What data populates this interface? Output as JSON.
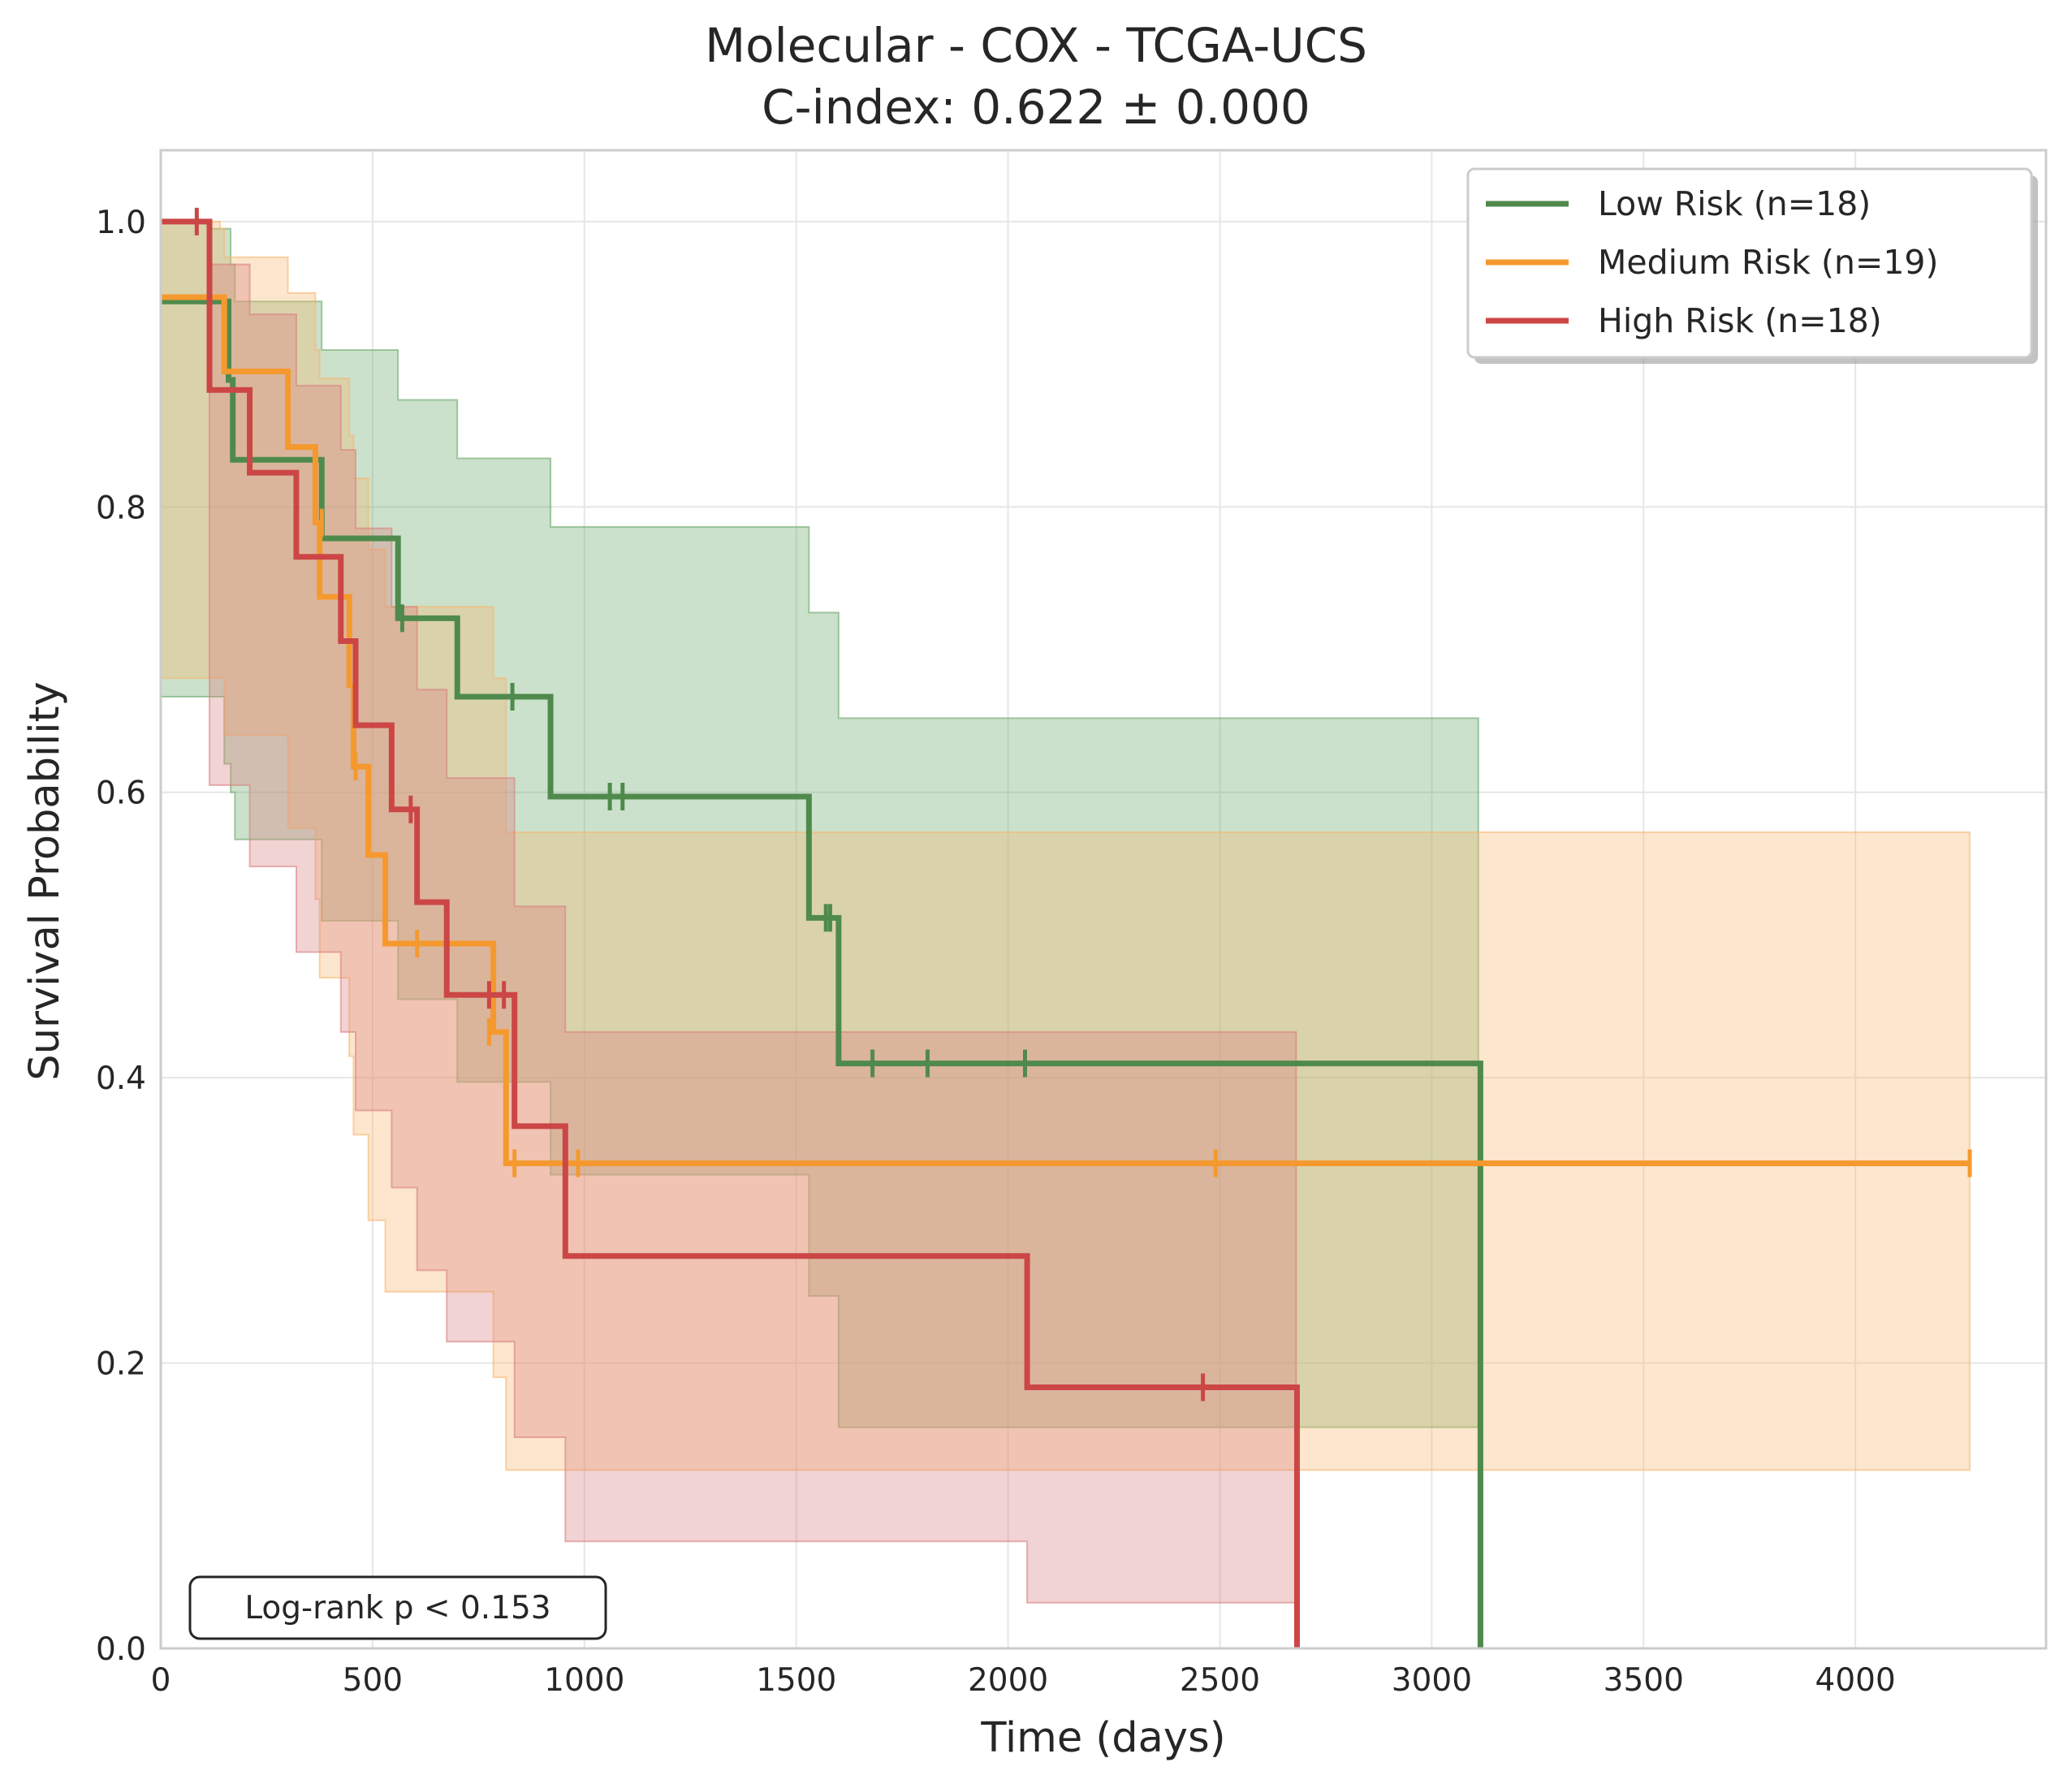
{
  "chart_data": {
    "type": "line",
    "title": [
      "Molecular - COX - TCGA-UCS",
      "C-index: 0.622 ± 0.000"
    ],
    "xlabel": "Time (days)",
    "ylabel": "Survival Probability",
    "xlim": [
      0,
      4450
    ],
    "ylim": [
      0,
      1.05
    ],
    "xticks": [
      0,
      500,
      1000,
      1500,
      2000,
      2500,
      3000,
      3500,
      4000
    ],
    "yticks": [
      0.0,
      0.2,
      0.4,
      0.6,
      0.8,
      1.0
    ],
    "xtick_labels": [
      "0",
      "500",
      "1000",
      "1500",
      "2000",
      "2500",
      "3000",
      "3500",
      "4000"
    ],
    "ytick_labels": [
      "0.0",
      "0.2",
      "0.4",
      "0.6",
      "0.8",
      "1.0"
    ],
    "grid": true,
    "legend_position": "top-right",
    "annotation": "Log-rank p < 0.153",
    "series": [
      {
        "name": "Low Risk (n=18)",
        "color": "#4f8a4c",
        "band_color": "#6aa86a",
        "steps": [
          [
            0,
            0.944
          ],
          [
            140,
            0.944
          ],
          [
            160,
            0.889
          ],
          [
            170,
            0.833
          ],
          [
            370,
            0.833
          ],
          [
            380,
            0.778
          ],
          [
            550,
            0.778
          ],
          [
            560,
            0.722
          ],
          [
            690,
            0.722
          ],
          [
            700,
            0.667
          ],
          [
            910,
            0.667
          ],
          [
            920,
            0.597
          ],
          [
            1520,
            0.597
          ],
          [
            1530,
            0.512
          ],
          [
            1590,
            0.512
          ],
          [
            1600,
            0.41
          ],
          [
            3110,
            0.41
          ],
          [
            3115,
            0.0
          ]
        ],
        "band": [
          [
            0,
            0.667,
            1.0
          ],
          [
            110,
            0.667,
            0.995
          ],
          [
            150,
            0.62,
            0.995
          ],
          [
            165,
            0.6,
            0.97
          ],
          [
            175,
            0.567,
            0.944
          ],
          [
            370,
            0.567,
            0.944
          ],
          [
            380,
            0.51,
            0.91
          ],
          [
            550,
            0.51,
            0.91
          ],
          [
            560,
            0.455,
            0.875
          ],
          [
            690,
            0.455,
            0.875
          ],
          [
            700,
            0.397,
            0.834
          ],
          [
            910,
            0.397,
            0.834
          ],
          [
            920,
            0.332,
            0.786
          ],
          [
            1520,
            0.332,
            0.786
          ],
          [
            1530,
            0.247,
            0.726
          ],
          [
            1590,
            0.247,
            0.726
          ],
          [
            1600,
            0.155,
            0.652
          ],
          [
            3110,
            0.155,
            0.652
          ]
        ],
        "censors": [
          [
            570,
            0.722
          ],
          [
            830,
            0.667
          ],
          [
            1060,
            0.597
          ],
          [
            1090,
            0.597
          ],
          [
            1570,
            0.512
          ],
          [
            1580,
            0.512
          ],
          [
            1680,
            0.41
          ],
          [
            1810,
            0.41
          ],
          [
            2040,
            0.41
          ]
        ]
      },
      {
        "name": "Medium Risk (n=19)",
        "color": "#f5992e",
        "band_color": "#f7b870",
        "steps": [
          [
            0,
            0.947
          ],
          [
            140,
            0.947
          ],
          [
            150,
            0.895
          ],
          [
            290,
            0.895
          ],
          [
            300,
            0.842
          ],
          [
            360,
            0.842
          ],
          [
            365,
            0.789
          ],
          [
            370,
            0.789
          ],
          [
            375,
            0.737
          ],
          [
            440,
            0.737
          ],
          [
            445,
            0.675
          ],
          [
            450,
            0.675
          ],
          [
            455,
            0.618
          ],
          [
            480,
            0.618
          ],
          [
            490,
            0.556
          ],
          [
            520,
            0.556
          ],
          [
            530,
            0.494
          ],
          [
            780,
            0.494
          ],
          [
            785,
            0.432
          ],
          [
            805,
            0.432
          ],
          [
            815,
            0.34
          ],
          [
            4270,
            0.34
          ]
        ],
        "band": [
          [
            0,
            0.68,
            1.0
          ],
          [
            140,
            0.68,
            0.995
          ],
          [
            150,
            0.64,
            0.975
          ],
          [
            290,
            0.64,
            0.975
          ],
          [
            300,
            0.575,
            0.95
          ],
          [
            360,
            0.575,
            0.95
          ],
          [
            365,
            0.525,
            0.91
          ],
          [
            375,
            0.47,
            0.89
          ],
          [
            440,
            0.47,
            0.89
          ],
          [
            445,
            0.415,
            0.85
          ],
          [
            455,
            0.36,
            0.82
          ],
          [
            480,
            0.36,
            0.82
          ],
          [
            490,
            0.3,
            0.77
          ],
          [
            520,
            0.3,
            0.77
          ],
          [
            530,
            0.25,
            0.73
          ],
          [
            780,
            0.25,
            0.73
          ],
          [
            785,
            0.19,
            0.68
          ],
          [
            805,
            0.19,
            0.68
          ],
          [
            815,
            0.125,
            0.572
          ],
          [
            4270,
            0.125,
            0.572
          ]
        ],
        "censors": [
          [
            380,
            0.789
          ],
          [
            460,
            0.618
          ],
          [
            605,
            0.494
          ],
          [
            775,
            0.432
          ],
          [
            835,
            0.34
          ],
          [
            985,
            0.34
          ],
          [
            2490,
            0.34
          ],
          [
            4270,
            0.34
          ]
        ]
      },
      {
        "name": "High Risk (n=18)",
        "color": "#cc4646",
        "band_color": "#d98080",
        "steps": [
          [
            0,
            1.0
          ],
          [
            110,
            1.0
          ],
          [
            115,
            0.882
          ],
          [
            205,
            0.882
          ],
          [
            210,
            0.824
          ],
          [
            315,
            0.824
          ],
          [
            320,
            0.765
          ],
          [
            420,
            0.765
          ],
          [
            425,
            0.706
          ],
          [
            455,
            0.706
          ],
          [
            460,
            0.647
          ],
          [
            540,
            0.647
          ],
          [
            545,
            0.588
          ],
          [
            600,
            0.588
          ],
          [
            605,
            0.523
          ],
          [
            670,
            0.523
          ],
          [
            675,
            0.458
          ],
          [
            830,
            0.458
          ],
          [
            835,
            0.366
          ],
          [
            950,
            0.366
          ],
          [
            955,
            0.275
          ],
          [
            2040,
            0.275
          ],
          [
            2045,
            0.183
          ],
          [
            2680,
            0.183
          ],
          [
            2682,
            0.0
          ]
        ],
        "band": [
          [
            0,
            1.0,
            1.0
          ],
          [
            110,
            1.0,
            1.0
          ],
          [
            115,
            0.605,
            0.97
          ],
          [
            205,
            0.605,
            0.97
          ],
          [
            210,
            0.548,
            0.935
          ],
          [
            315,
            0.548,
            0.935
          ],
          [
            320,
            0.488,
            0.885
          ],
          [
            420,
            0.488,
            0.885
          ],
          [
            425,
            0.432,
            0.84
          ],
          [
            455,
            0.432,
            0.84
          ],
          [
            460,
            0.377,
            0.785
          ],
          [
            540,
            0.377,
            0.785
          ],
          [
            545,
            0.323,
            0.73
          ],
          [
            600,
            0.323,
            0.73
          ],
          [
            605,
            0.265,
            0.672
          ],
          [
            670,
            0.265,
            0.672
          ],
          [
            675,
            0.215,
            0.61
          ],
          [
            830,
            0.215,
            0.61
          ],
          [
            835,
            0.148,
            0.52
          ],
          [
            950,
            0.148,
            0.52
          ],
          [
            955,
            0.075,
            0.432
          ],
          [
            2040,
            0.075,
            0.432
          ],
          [
            2045,
            0.032,
            0.432
          ],
          [
            2680,
            0.032,
            0.432
          ]
        ],
        "censors": [
          [
            85,
            1.0
          ],
          [
            590,
            0.588
          ],
          [
            775,
            0.458
          ],
          [
            810,
            0.458
          ],
          [
            2460,
            0.183
          ]
        ]
      }
    ]
  }
}
